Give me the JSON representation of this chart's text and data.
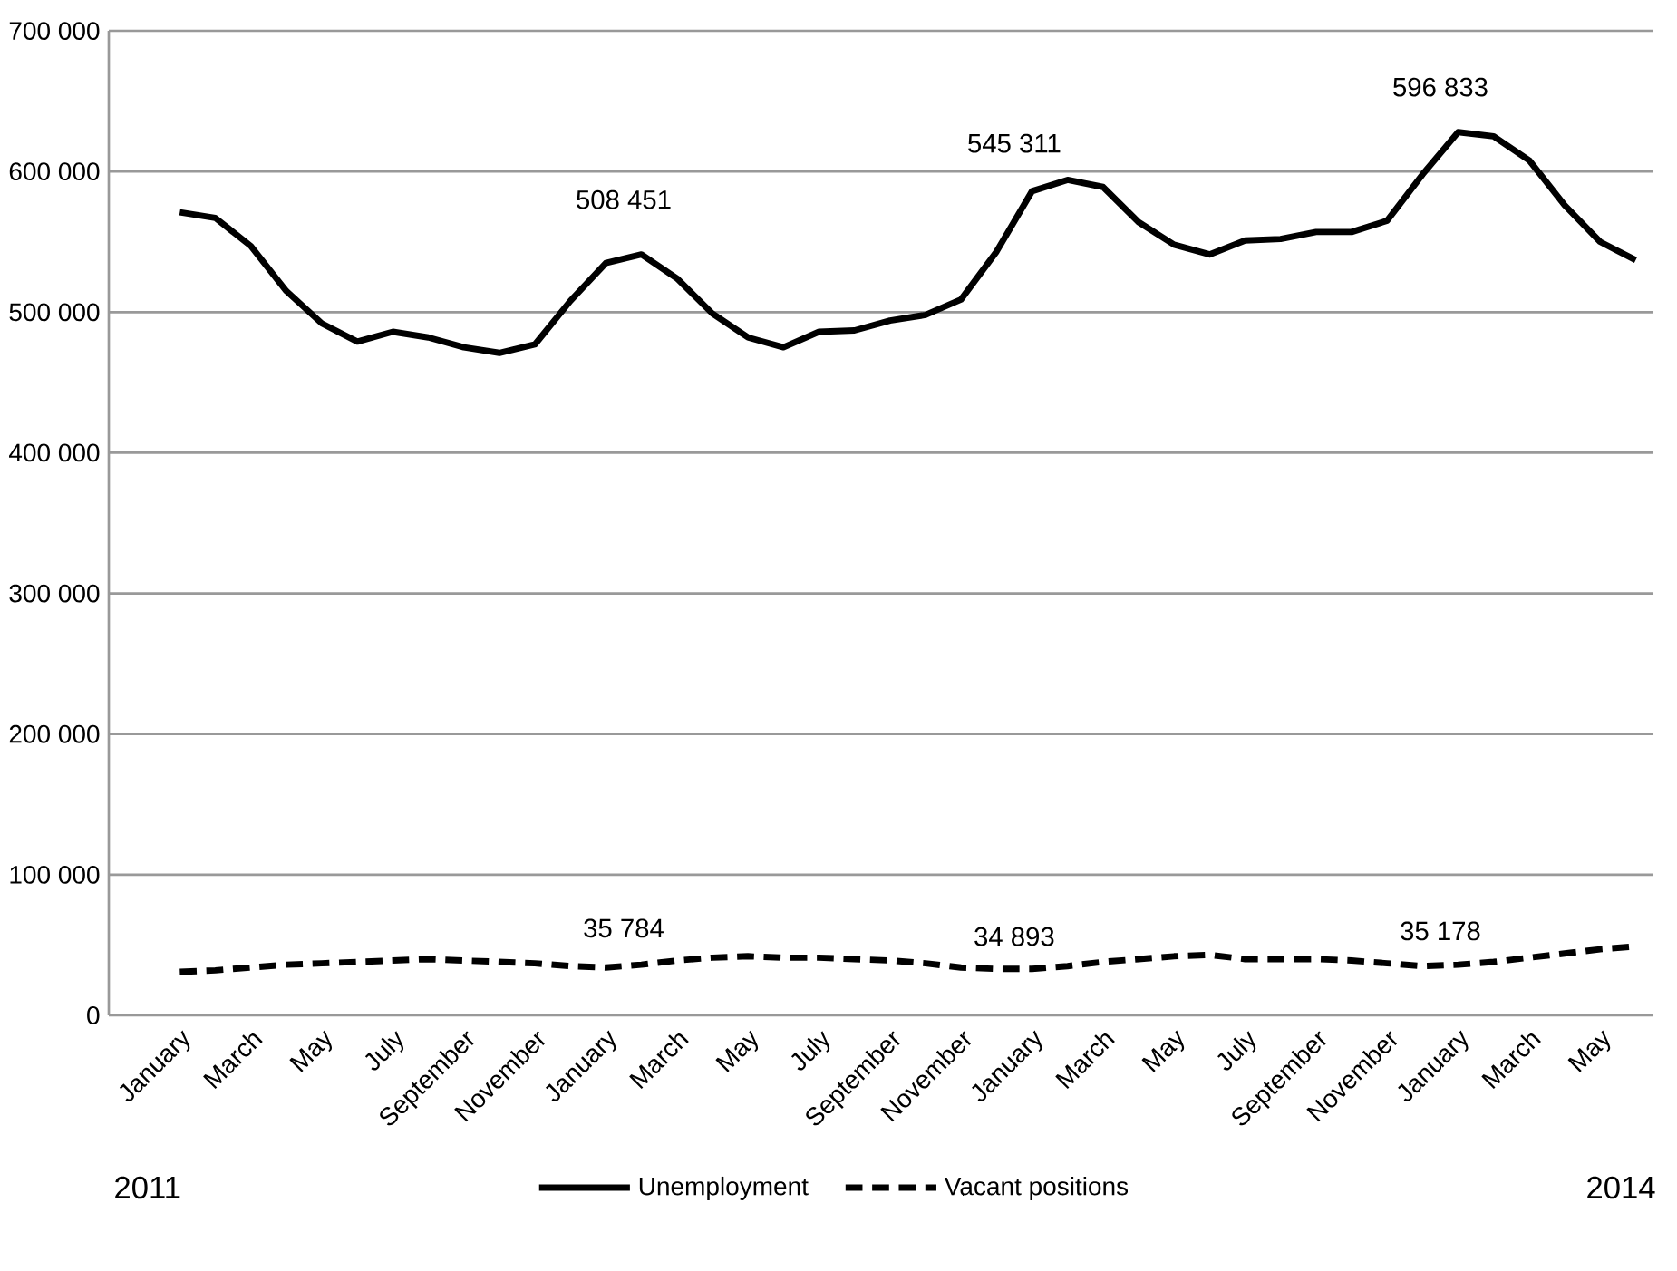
{
  "chart_data": {
    "type": "line",
    "categories": [
      "January",
      null,
      "March",
      null,
      "May",
      null,
      "July",
      null,
      "September",
      null,
      "November",
      null,
      "January",
      null,
      "March",
      null,
      "May",
      null,
      "July",
      null,
      "September",
      null,
      "November",
      null,
      "January",
      null,
      "March",
      null,
      "May",
      null,
      "July",
      null,
      "September",
      null,
      "November",
      null,
      "January",
      null,
      "March",
      null,
      "May",
      null
    ],
    "series": [
      {
        "name": "Unemployment",
        "color": "#000000",
        "line_style": "solid",
        "values": [
          571000,
          567000,
          547000,
          515000,
          492000,
          479000,
          486000,
          482000,
          475000,
          471000,
          477000,
          508000,
          535000,
          541000,
          524000,
          499000,
          482000,
          475000,
          486000,
          487000,
          494000,
          498000,
          509000,
          543000,
          586000,
          594000,
          589000,
          564000,
          548000,
          541000,
          551000,
          552000,
          557000,
          557000,
          565000,
          598000,
          628000,
          625000,
          608000,
          576000,
          550000,
          537000
        ]
      },
      {
        "name": "Vacant positions",
        "color": "#000000",
        "line_style": "dashed",
        "values": [
          31000,
          32000,
          34000,
          36000,
          37000,
          38000,
          39000,
          40000,
          39000,
          38000,
          37000,
          35000,
          34000,
          36000,
          39000,
          41000,
          42000,
          41000,
          41000,
          40000,
          39000,
          37000,
          34000,
          33000,
          33000,
          35000,
          38000,
          40000,
          42000,
          43000,
          40000,
          40000,
          40000,
          39000,
          37000,
          35000,
          36000,
          38000,
          41000,
          44000,
          47000,
          49000
        ]
      }
    ],
    "ylim": [
      0,
      700000
    ],
    "yticks": [
      {
        "value": 0,
        "label": "0"
      },
      {
        "value": 100000,
        "label": "100 000"
      },
      {
        "value": 200000,
        "label": "200 000"
      },
      {
        "value": 300000,
        "label": "300 000"
      },
      {
        "value": 400000,
        "label": "400 000"
      },
      {
        "value": 500000,
        "label": "500 000"
      },
      {
        "value": 600000,
        "label": "600 000"
      },
      {
        "value": 700000,
        "label": "700 000"
      }
    ],
    "grid": "y",
    "legend": "bottom",
    "marker": "none",
    "annotations": [
      "508 451",
      "545 311",
      "596 833",
      "35 784",
      "34 893",
      "35 178",
      "2011",
      "2014"
    ]
  }
}
